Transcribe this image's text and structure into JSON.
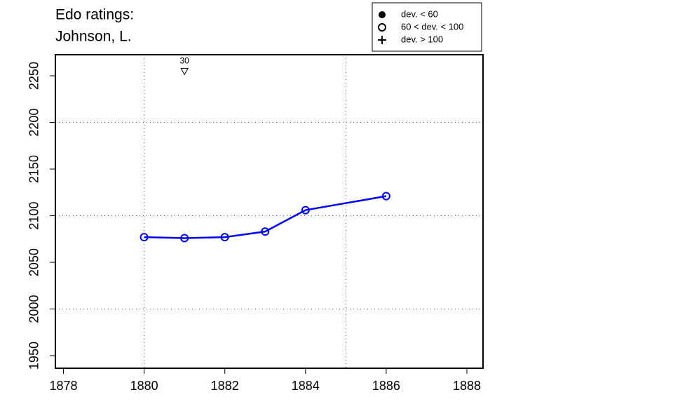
{
  "chart_data": {
    "type": "line",
    "title": [
      "Edo ratings:",
      "Johnson, L."
    ],
    "x": [
      1880,
      1881,
      1882,
      1883,
      1884,
      1886
    ],
    "series": [
      {
        "color": "#0000ff",
        "marker": "open-circle",
        "values": [
          2077,
          2076,
          2077,
          2083,
          2106,
          2121
        ]
      }
    ],
    "xlim": [
      1877.8,
      1888.4
    ],
    "ylim": [
      1936.5,
      2272.6
    ],
    "xticks": [
      1878,
      1880,
      1882,
      1884,
      1886,
      1888
    ],
    "yticks": [
      1950,
      2000,
      2050,
      2100,
      2150,
      2200,
      2250
    ],
    "grid_x": [
      1880,
      1885
    ],
    "grid_y": [
      2000,
      2100,
      2200
    ],
    "annotation": {
      "x": 1881,
      "y": 2255,
      "label": "30",
      "marker": "down-triangle"
    },
    "legend_corner": "top-right",
    "legend": [
      {
        "symbol": "filled-circle",
        "label": "dev. < 60"
      },
      {
        "symbol": "open-circle",
        "label": "60 < dev. < 100"
      },
      {
        "symbol": "plus",
        "label": "dev. > 100"
      }
    ]
  }
}
